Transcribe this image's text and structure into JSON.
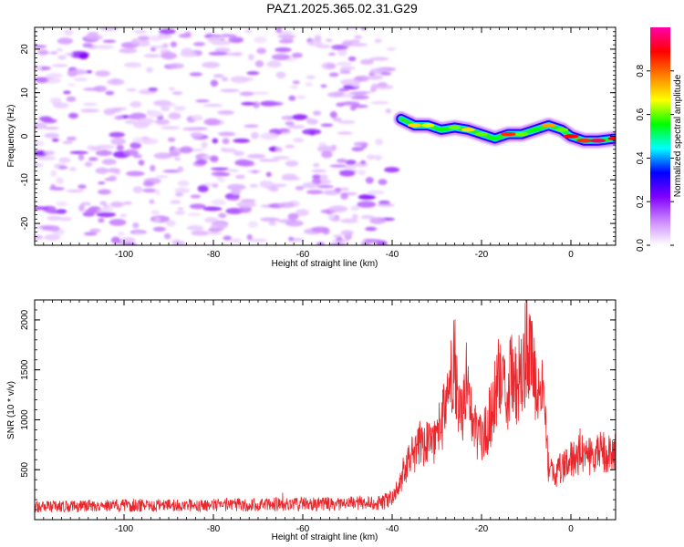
{
  "title": "PAZ1.2025.365.02.31.G29",
  "chart_data": [
    {
      "type": "heatmap",
      "xlabel": "Height of straight line (km)",
      "ylabel": "Frequency (Hz)",
      "xlim": [
        -120,
        10
      ],
      "ylim": [
        -25,
        25
      ],
      "xticks": [
        -100,
        -80,
        -60,
        -40,
        -20,
        0
      ],
      "yticks": [
        -20,
        -10,
        0,
        10,
        20
      ],
      "colorbar": {
        "label": "Normalized spectral amplitude",
        "range": [
          0,
          1
        ],
        "ticks": [
          0.0,
          0.2,
          0.4,
          0.6,
          0.8
        ],
        "colors": [
          "#ffffff",
          "#cc88ff",
          "#8000ff",
          "#0000ff",
          "#00ffff",
          "#00ff00",
          "#ffff00",
          "#ff8000",
          "#ff0000",
          "#ff00aa"
        ]
      },
      "noise_region": {
        "x_range": [
          -120,
          -40
        ],
        "freq_range": [
          -25,
          25
        ],
        "amplitude_range": [
          0.0,
          0.2
        ]
      },
      "signal_ridge": {
        "x": [
          -38,
          -35,
          -32,
          -29,
          -26,
          -23,
          -20,
          -17,
          -14,
          -11,
          -8,
          -5,
          -2,
          0,
          3,
          6,
          10
        ],
        "frequency": [
          4,
          2.5,
          2.5,
          1.5,
          2,
          1.5,
          0.5,
          -0.5,
          0.5,
          0.5,
          1.5,
          2.5,
          1.5,
          0,
          -1,
          -1,
          -0.5
        ],
        "peak_amplitude": [
          0.3,
          0.7,
          0.65,
          0.55,
          0.6,
          0.7,
          0.6,
          0.55,
          0.85,
          0.6,
          0.55,
          0.75,
          0.6,
          0.9,
          0.85,
          0.95,
          0.9
        ]
      }
    },
    {
      "type": "line",
      "xlabel": "Height of straight line (km)",
      "ylabel": "SNR (10 * v/v)",
      "xlim": [
        -120,
        10
      ],
      "ylim": [
        0,
        2200
      ],
      "xticks": [
        -100,
        -80,
        -60,
        -40,
        -20,
        0
      ],
      "yticks": [
        500,
        1000,
        1500,
        2000
      ],
      "color": "#e8262b",
      "series": [
        {
          "name": "SNR",
          "x": [
            -120,
            -110,
            -100,
            -90,
            -80,
            -70,
            -60,
            -50,
            -45,
            -42,
            -40,
            -38,
            -36,
            -34,
            -32,
            -30,
            -28,
            -27,
            -26,
            -25,
            -24,
            -23,
            -22,
            -21,
            -20,
            -19,
            -18,
            -17,
            -16,
            -15,
            -14,
            -13,
            -12,
            -11,
            -10,
            -9,
            -8,
            -7,
            -6,
            -5,
            -4,
            -2,
            0,
            2,
            4,
            6,
            8,
            10
          ],
          "values": [
            130,
            135,
            140,
            140,
            145,
            150,
            155,
            160,
            170,
            180,
            210,
            380,
            620,
            750,
            760,
            850,
            1100,
            1500,
            1600,
            1050,
            1150,
            1300,
            950,
            850,
            800,
            900,
            1050,
            1300,
            1450,
            1250,
            1300,
            1550,
            1350,
            1500,
            1700,
            1600,
            1350,
            1400,
            1100,
            500,
            450,
            520,
            600,
            650,
            640,
            700,
            650,
            690
          ]
        }
      ]
    }
  ]
}
